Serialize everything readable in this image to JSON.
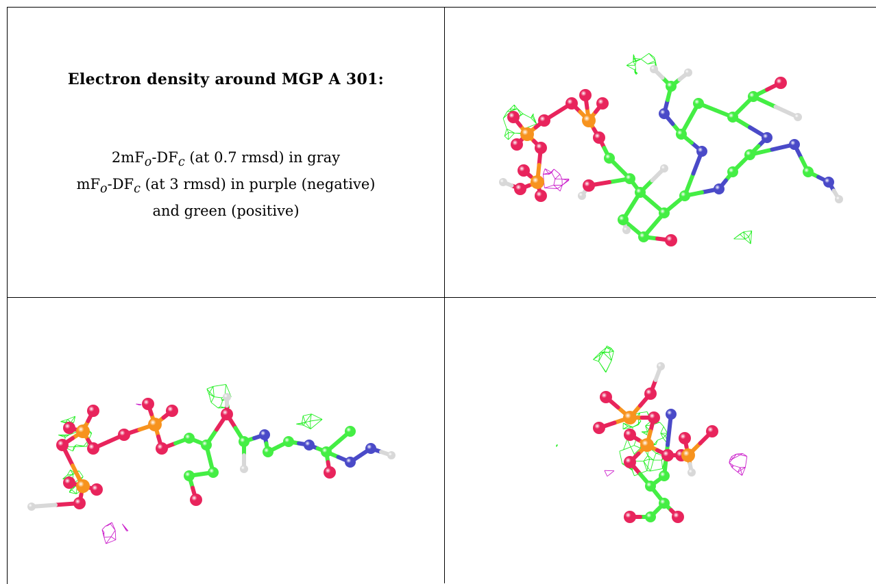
{
  "caption": {
    "title": "Electron density around MGP A 301:",
    "line1": {
      "pre": "2mF",
      "sub1": "o",
      "mid": "-DF",
      "sub2": "c",
      "post": " (at 0.7 rmsd) in gray"
    },
    "line2": {
      "pre": "mF",
      "sub1": "o",
      "mid": "-DF",
      "sub2": "c",
      "post": " (at 3 rmsd) in purple (negative)"
    },
    "line3": "and green (positive)"
  },
  "colors": {
    "mesh_gray": "#8c8c8c",
    "mesh_green": "#22ee22",
    "mesh_purple": "#cc22cc",
    "carbon": "#44ee44",
    "oxygen": "#e8245c",
    "phosphorus": "#f7931e",
    "nitrogen": "#4a4ac8",
    "hydrogen": "#d8d8d8"
  },
  "panels": [
    {
      "name": "view-top-right"
    },
    {
      "name": "view-bottom-left"
    },
    {
      "name": "view-bottom-right"
    }
  ]
}
